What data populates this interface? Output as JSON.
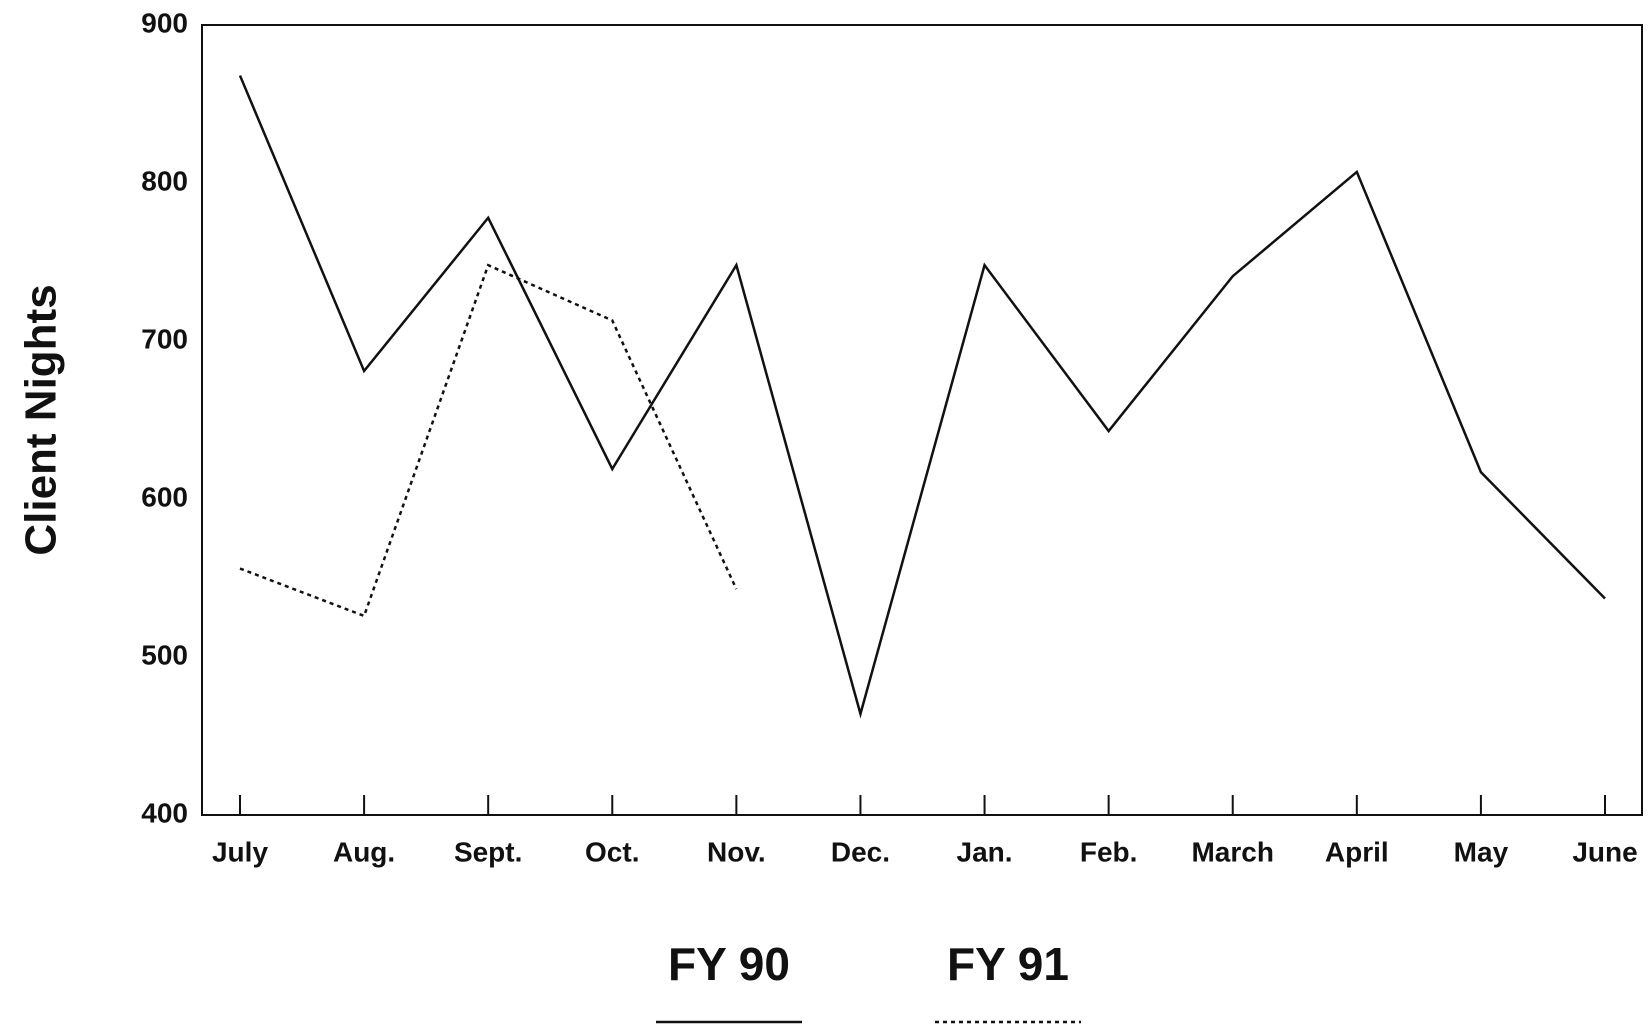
{
  "chart_data": {
    "type": "line",
    "ylabel": "Client Nights",
    "categories": [
      "July",
      "Aug.",
      "Sept.",
      "Oct.",
      "Nov.",
      "Dec.",
      "Jan.",
      "Feb.",
      "March",
      "April",
      "May",
      "June"
    ],
    "series": [
      {
        "name": "FY 90",
        "color": "#111111",
        "dash": "solid",
        "values": [
          868,
          681,
          778,
          619,
          748,
          464,
          748,
          643,
          741,
          807,
          617,
          537
        ]
      },
      {
        "name": "FY 91",
        "color": "#111111",
        "dash": "dotted",
        "values": [
          556,
          526,
          748,
          713,
          543,
          null,
          null,
          null,
          null,
          null,
          null,
          null
        ]
      }
    ],
    "ylim": [
      400,
      900
    ],
    "yticks": [
      400,
      500,
      600,
      700,
      800,
      900
    ],
    "grid": false
  }
}
